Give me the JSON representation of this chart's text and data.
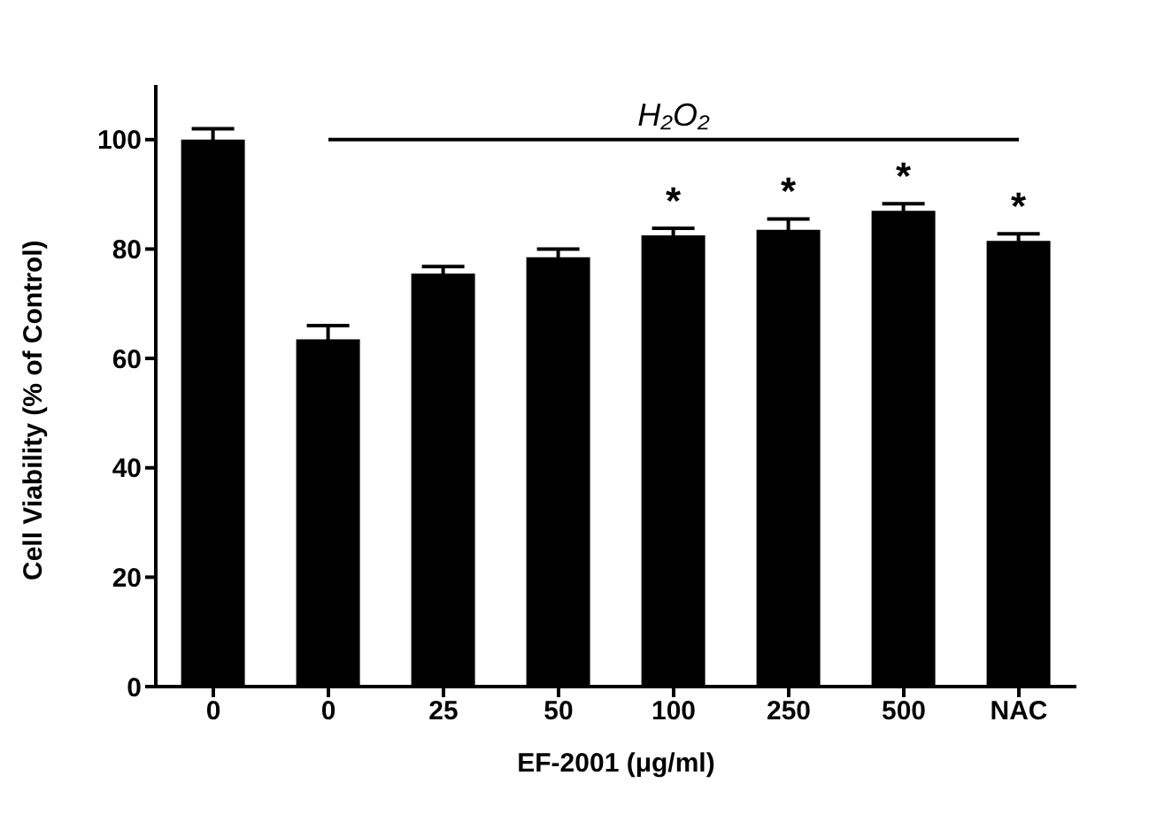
{
  "chart_data": {
    "type": "bar",
    "xlabel": "EF-2001 (μg/ml)",
    "ylabel": "Cell Viability (% of Control)",
    "categories": [
      "0",
      "0",
      "25",
      "50",
      "100",
      "250",
      "500",
      "NAC"
    ],
    "values": [
      100,
      63.5,
      75.5,
      78.5,
      82.5,
      83.5,
      87,
      81.5
    ],
    "errors": [
      2,
      2.5,
      1.3,
      1.5,
      1.3,
      2,
      1.3,
      1.3
    ],
    "color": "#000000",
    "ylim": [
      0,
      110
    ],
    "yticks": [
      0,
      20,
      40,
      60,
      80,
      100
    ],
    "grid": false,
    "legend": false,
    "value_labels": [
      null,
      null,
      null,
      null,
      "*",
      "*",
      "*",
      "*"
    ],
    "ref_lines": [
      {
        "axis": "y",
        "value": 100,
        "label": "H₂O₂"
      }
    ]
  }
}
